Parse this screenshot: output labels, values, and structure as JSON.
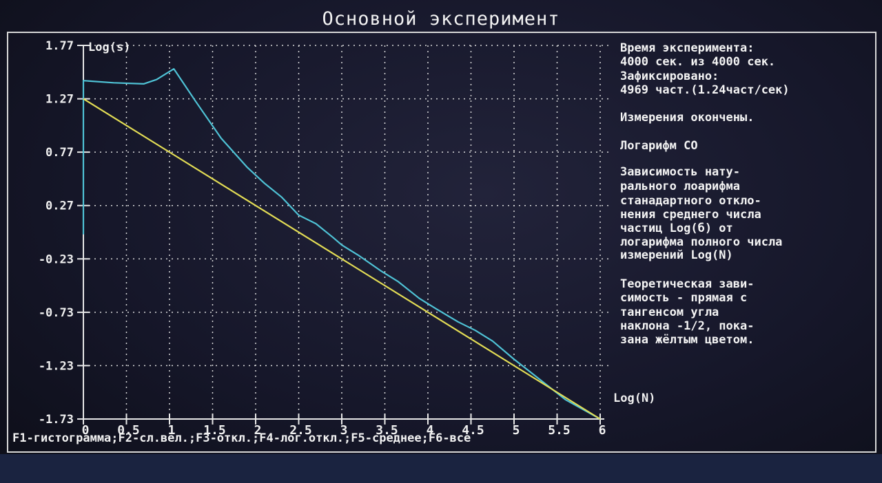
{
  "window": {
    "title": "Основной эксперимент"
  },
  "info": {
    "time_lines": [
      "Время эксперимента:",
      "4000 сек. из 4000 сек."
    ],
    "fixed_lines": [
      "Зафиксировано:",
      "4969 част.(1.24част/сек)"
    ],
    "status": "Измерения окончены.",
    "mode": "Логарифм СО",
    "description_lines": [
      "Зависимость нату-",
      "рального лоарифма",
      "станадартного откло-",
      "нения среднего числа",
      "частиц Log(б) от",
      "логарифма полного числа",
      "измерений Log(N)"
    ],
    "theory_lines": [
      "Теоретическая зави-",
      "симость - прямая с",
      "тангенсом угла",
      "наклона -1/2, пока-",
      "зана жёлтым цветом."
    ]
  },
  "function_keys": "F1-гистограмма;F2-сл.вел.;F3-откл.;F4-лог.откл.;F5-среднее;F6-все",
  "colors": {
    "grid": "#dcdcdc",
    "axis": "#e8e8e8",
    "experimental": "#4fc3d6",
    "theoretical": "#e3dd55",
    "text": "#f0f0f0"
  },
  "chart_data": {
    "type": "line",
    "title": "",
    "xlabel": "Log(N)",
    "ylabel": "Log(s)",
    "xlim": [
      0,
      6
    ],
    "ylim": [
      -1.73,
      1.77
    ],
    "x_ticks": [
      "0",
      "0.5",
      "1",
      "1.5",
      "2",
      "2.5",
      "3",
      "3.5",
      "4",
      "4.5",
      "5",
      "5.5",
      "6"
    ],
    "y_ticks": [
      "1.77",
      "1.27",
      "0.77",
      "0.27",
      "-0.23",
      "-0.73",
      "-1.23",
      "-1.73"
    ],
    "grid": true,
    "series": [
      {
        "name": "",
        "color": "#4fc3d6",
        "points": [
          [
            0,
            0.0
          ],
          [
            0,
            1.44
          ],
          [
            0.35,
            1.42
          ],
          [
            0.7,
            1.41
          ],
          [
            0.85,
            1.45
          ],
          [
            1.05,
            1.55
          ],
          [
            1.3,
            1.25
          ],
          [
            1.6,
            0.9
          ],
          [
            1.9,
            0.63
          ],
          [
            2.1,
            0.48
          ],
          [
            2.3,
            0.35
          ],
          [
            2.5,
            0.18
          ],
          [
            2.7,
            0.1
          ],
          [
            2.9,
            -0.03
          ],
          [
            3.0,
            -0.1
          ],
          [
            3.2,
            -0.2
          ],
          [
            3.45,
            -0.34
          ],
          [
            3.65,
            -0.44
          ],
          [
            3.9,
            -0.6
          ],
          [
            4.1,
            -0.7
          ],
          [
            4.35,
            -0.82
          ],
          [
            4.55,
            -0.9
          ],
          [
            4.75,
            -1.0
          ],
          [
            5.0,
            -1.17
          ],
          [
            5.3,
            -1.36
          ],
          [
            5.6,
            -1.55
          ],
          [
            6.0,
            -1.73
          ]
        ]
      },
      {
        "name": "",
        "color": "#e3dd55",
        "points": [
          [
            0,
            1.27
          ],
          [
            6.0,
            -1.73
          ]
        ]
      }
    ]
  }
}
